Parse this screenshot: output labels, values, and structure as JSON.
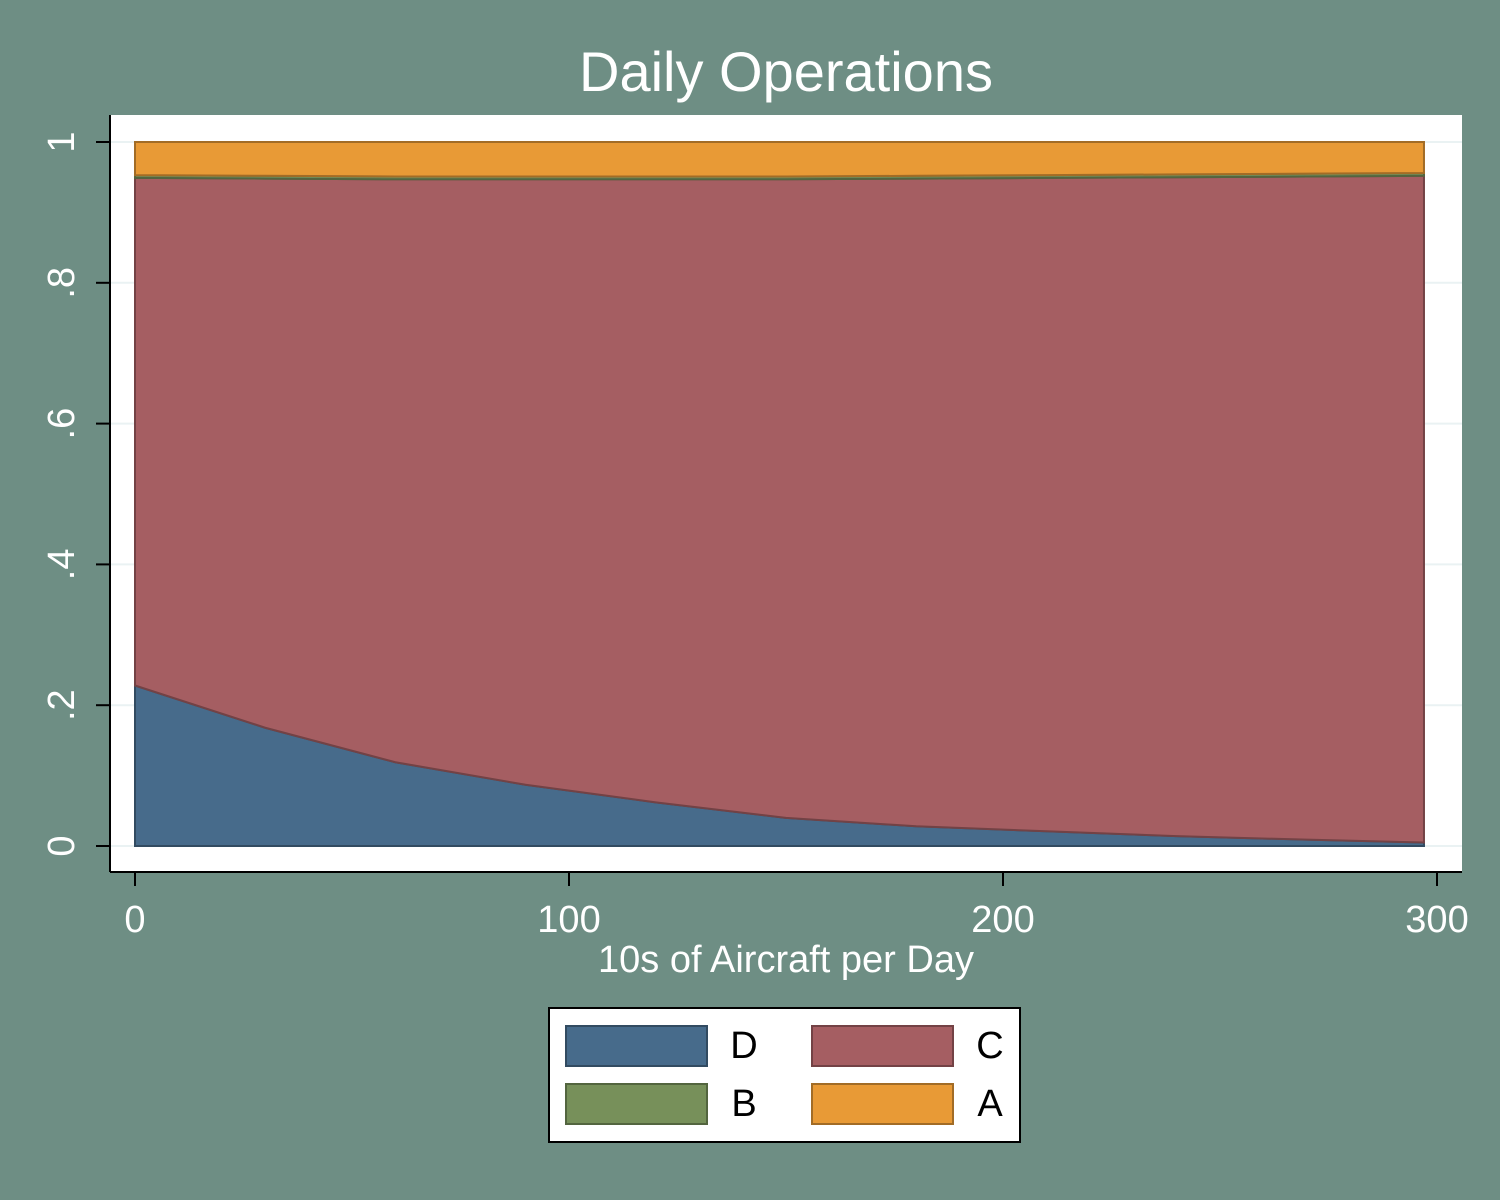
{
  "chart_data": {
    "type": "stacked-area",
    "title": "Daily Operations",
    "x_label": "10s of Aircraft per Day",
    "x": [
      0,
      30,
      60,
      90,
      120,
      150,
      180,
      210,
      240,
      270,
      297
    ],
    "series": [
      {
        "name": "D",
        "color": "#476b8b",
        "values": [
          0.228,
          0.168,
          0.119,
          0.087,
          0.062,
          0.04,
          0.028,
          0.021,
          0.014,
          0.009,
          0.005
        ]
      },
      {
        "name": "C",
        "color": "#a55e62",
        "values": [
          0.721,
          0.78,
          0.828,
          0.86,
          0.885,
          0.907,
          0.92,
          0.928,
          0.936,
          0.942,
          0.947
        ]
      },
      {
        "name": "B",
        "color": "#77905a",
        "values": [
          0.004,
          0.004,
          0.004,
          0.004,
          0.004,
          0.004,
          0.004,
          0.004,
          0.004,
          0.004,
          0.004
        ]
      },
      {
        "name": "A",
        "color": "#e89a36",
        "values": [
          0.047,
          0.048,
          0.049,
          0.049,
          0.049,
          0.049,
          0.048,
          0.047,
          0.046,
          0.045,
          0.044
        ]
      }
    ],
    "xlim": [
      0,
      300
    ],
    "xticks": [
      0,
      100,
      200,
      300
    ],
    "ylim": [
      0,
      1
    ],
    "yticks": [
      0,
      {
        "value": 0.2,
        "label": ".2"
      },
      {
        "value": 0.4,
        "label": ".4"
      },
      {
        "value": 0.6,
        "label": ".6"
      },
      {
        "value": 0.8,
        "label": ".8"
      },
      1
    ],
    "grid": true,
    "legend_position": "bottom"
  }
}
